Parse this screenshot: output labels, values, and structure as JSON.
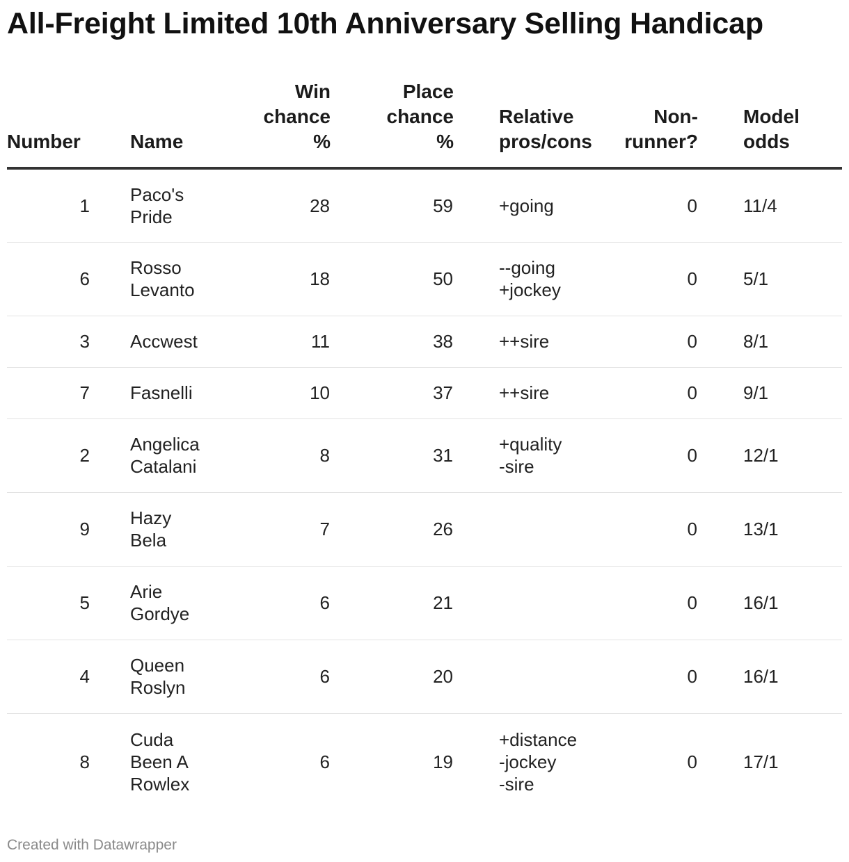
{
  "title": "All-Freight Limited 10th Anniversary Selling Handicap",
  "footer": "Created with Datawrapper",
  "header": {
    "number": "Number",
    "name": "Name",
    "win": [
      "Win",
      "chance",
      "%"
    ],
    "place": [
      "Place",
      "chance",
      "%"
    ],
    "pros": [
      "Relative",
      "pros/cons"
    ],
    "nonrunner": [
      "Non-",
      "runner?"
    ],
    "odds": [
      "Model",
      "odds"
    ]
  },
  "chart_data": {
    "type": "table",
    "columns": [
      "Number",
      "Name",
      "Win chance %",
      "Place chance %",
      "Relative pros/cons",
      "Non-runner?",
      "Model odds"
    ],
    "rows": [
      {
        "number": "1",
        "name": [
          "Paco's",
          "Pride"
        ],
        "win": "28",
        "place": "59",
        "pros": [
          "+going"
        ],
        "nonrunner": "0",
        "odds": "11/4",
        "h": 106
      },
      {
        "number": "6",
        "name": [
          "Rosso",
          "Levanto"
        ],
        "win": "18",
        "place": "50",
        "pros": [
          "--going",
          "+jockey"
        ],
        "nonrunner": "0",
        "odds": "5/1",
        "h": 106
      },
      {
        "number": "3",
        "name": [
          "Accwest"
        ],
        "win": "11",
        "place": "38",
        "pros": [
          "++sire"
        ],
        "nonrunner": "0",
        "odds": "8/1",
        "h": 74
      },
      {
        "number": "7",
        "name": [
          "Fasnelli"
        ],
        "win": "10",
        "place": "37",
        "pros": [
          "++sire"
        ],
        "nonrunner": "0",
        "odds": "9/1",
        "h": 74
      },
      {
        "number": "2",
        "name": [
          "Angelica",
          "Catalani"
        ],
        "win": "8",
        "place": "31",
        "pros": [
          "+quality",
          "-sire"
        ],
        "nonrunner": "0",
        "odds": "12/1",
        "h": 106
      },
      {
        "number": "9",
        "name": [
          "Hazy",
          "Bela"
        ],
        "win": "7",
        "place": "26",
        "pros": [],
        "nonrunner": "0",
        "odds": "13/1",
        "h": 106
      },
      {
        "number": "5",
        "name": [
          "Arie",
          "Gordye"
        ],
        "win": "6",
        "place": "21",
        "pros": [],
        "nonrunner": "0",
        "odds": "16/1",
        "h": 106
      },
      {
        "number": "4",
        "name": [
          "Queen",
          "Roslyn"
        ],
        "win": "6",
        "place": "20",
        "pros": [],
        "nonrunner": "0",
        "odds": "16/1",
        "h": 106
      },
      {
        "number": "8",
        "name": [
          "Cuda",
          "Been A",
          "Rowlex"
        ],
        "win": "6",
        "place": "19",
        "pros": [
          "+distance",
          "-jockey",
          "-sire"
        ],
        "nonrunner": "0",
        "odds": "17/1",
        "h": 140
      }
    ]
  }
}
